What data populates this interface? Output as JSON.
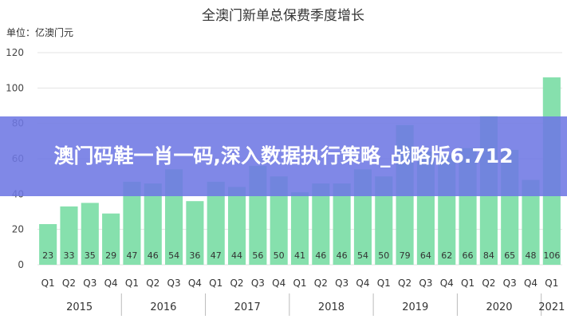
{
  "chart_data": {
    "type": "bar",
    "title": "全澳门新单总保费季度增长",
    "unit_label": "单位：亿澳门元",
    "ylim": [
      0,
      120
    ],
    "yticks": [
      0,
      20,
      40,
      60,
      80,
      100,
      120
    ],
    "grid": true,
    "categories": [
      "Q1",
      "Q2",
      "Q3",
      "Q4",
      "Q1",
      "Q2",
      "Q3",
      "Q4",
      "Q1",
      "Q2",
      "Q3",
      "Q4",
      "Q1",
      "Q2",
      "Q3",
      "Q4",
      "Q1",
      "Q2",
      "Q3",
      "Q4",
      "Q1",
      "Q2",
      "Q3",
      "Q4",
      "Q1"
    ],
    "values": [
      23,
      33,
      35,
      29,
      47,
      46,
      54,
      36,
      47,
      44,
      56,
      50,
      41,
      46,
      46,
      54,
      50,
      79,
      64,
      62,
      66,
      84,
      65,
      48,
      106
    ],
    "years": [
      {
        "label": "2015",
        "start": 0,
        "count": 4
      },
      {
        "label": "2016",
        "start": 4,
        "count": 4
      },
      {
        "label": "2017",
        "start": 8,
        "count": 4
      },
      {
        "label": "2018",
        "start": 12,
        "count": 4
      },
      {
        "label": "2019",
        "start": 16,
        "count": 4
      },
      {
        "label": "2020",
        "start": 20,
        "count": 4
      },
      {
        "label": "2021",
        "start": 24,
        "count": 1
      }
    ],
    "bar_color": "#86e0ad",
    "label_color": "#333333"
  },
  "banner": {
    "text": "澳门码鞋一肖一码,深入数据执行策略_战略版6.712",
    "color": "#6e78e4"
  }
}
